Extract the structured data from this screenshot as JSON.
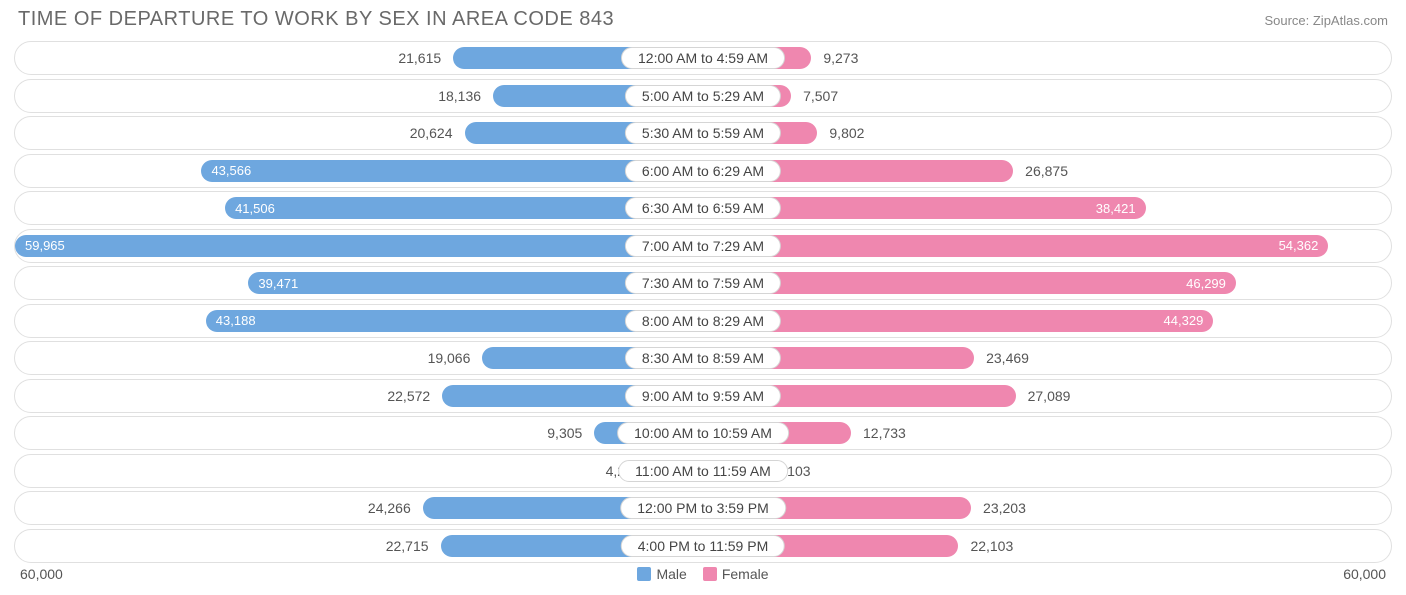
{
  "title": "TIME OF DEPARTURE TO WORK BY SEX IN AREA CODE 843",
  "source": "Source: ZipAtlas.com",
  "chart": {
    "type": "diverging-bar",
    "background_color": "#ffffff",
    "row_border_color": "#e0e0e0",
    "male_color": "#6ea7df",
    "female_color": "#ef87af",
    "text_color_inside": "#ffffff",
    "text_color_outside": "#555555",
    "title_color": "#696969",
    "title_fontsize": 20,
    "label_fontsize": 14,
    "inner_label_fontsize": 13,
    "axis_max": 60000,
    "axis_label": "60,000",
    "inner_label_threshold": 36000,
    "rows": [
      {
        "category": "12:00 AM to 4:59 AM",
        "male": 21615,
        "male_label": "21,615",
        "female": 9273,
        "female_label": "9,273"
      },
      {
        "category": "5:00 AM to 5:29 AM",
        "male": 18136,
        "male_label": "18,136",
        "female": 7507,
        "female_label": "7,507"
      },
      {
        "category": "5:30 AM to 5:59 AM",
        "male": 20624,
        "male_label": "20,624",
        "female": 9802,
        "female_label": "9,802"
      },
      {
        "category": "6:00 AM to 6:29 AM",
        "male": 43566,
        "male_label": "43,566",
        "female": 26875,
        "female_label": "26,875"
      },
      {
        "category": "6:30 AM to 6:59 AM",
        "male": 41506,
        "male_label": "41,506",
        "female": 38421,
        "female_label": "38,421"
      },
      {
        "category": "7:00 AM to 7:29 AM",
        "male": 59965,
        "male_label": "59,965",
        "female": 54362,
        "female_label": "54,362"
      },
      {
        "category": "7:30 AM to 7:59 AM",
        "male": 39471,
        "male_label": "39,471",
        "female": 46299,
        "female_label": "46,299"
      },
      {
        "category": "8:00 AM to 8:29 AM",
        "male": 43188,
        "male_label": "43,188",
        "female": 44329,
        "female_label": "44,329"
      },
      {
        "category": "8:30 AM to 8:59 AM",
        "male": 19066,
        "male_label": "19,066",
        "female": 23469,
        "female_label": "23,469"
      },
      {
        "category": "9:00 AM to 9:59 AM",
        "male": 22572,
        "male_label": "22,572",
        "female": 27089,
        "female_label": "27,089"
      },
      {
        "category": "10:00 AM to 10:59 AM",
        "male": 9305,
        "male_label": "9,305",
        "female": 12733,
        "female_label": "12,733"
      },
      {
        "category": "11:00 AM to 11:59 AM",
        "male": 4220,
        "male_label": "4,220",
        "female": 5103,
        "female_label": "5,103"
      },
      {
        "category": "12:00 PM to 3:59 PM",
        "male": 24266,
        "male_label": "24,266",
        "female": 23203,
        "female_label": "23,203"
      },
      {
        "category": "4:00 PM to 11:59 PM",
        "male": 22715,
        "male_label": "22,715",
        "female": 22103,
        "female_label": "22,103"
      }
    ],
    "legend": {
      "male": "Male",
      "female": "Female"
    }
  }
}
